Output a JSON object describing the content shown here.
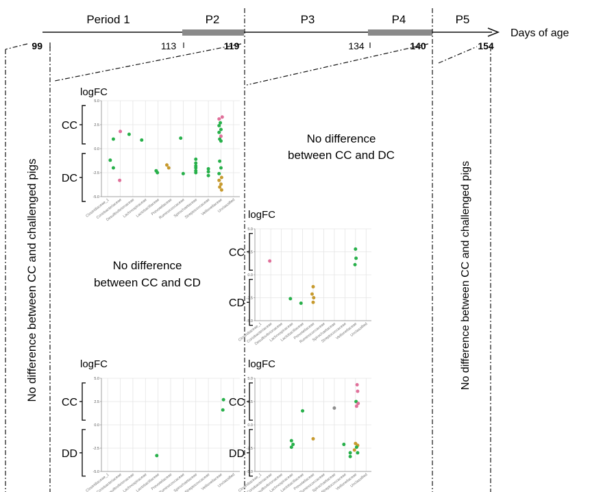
{
  "timeline": {
    "axis_label": "Days of age",
    "periods": [
      "Period 1",
      "P2",
      "P3",
      "P4",
      "P5"
    ],
    "ticks": [
      {
        "label": "99",
        "bold": true
      },
      {
        "label": "113",
        "bold": false
      },
      {
        "label": "119",
        "bold": true
      },
      {
        "label": "134",
        "bold": false
      },
      {
        "label": "140",
        "bold": true
      },
      {
        "label": "154",
        "bold": true
      }
    ]
  },
  "side_notes": {
    "left": "No difference between CC and challenged pigs",
    "right": "No difference between CC and challenged pigs"
  },
  "notes": {
    "cc_dc": [
      "No difference",
      "between CC and DC"
    ],
    "cc_cd": [
      "No difference",
      "between CC and CD"
    ]
  },
  "colors": {
    "green": "#27b04a",
    "pink": "#e0709a",
    "gold": "#c79a2e",
    "gray": "#8c8c8c",
    "period_bar": "#8a8a8a"
  },
  "chart_data": [
    {
      "id": "p2-cc-dc",
      "type": "scatter",
      "ylabel": "logFC",
      "ylim": [
        -5,
        5
      ],
      "yticks": [
        "5.0",
        "2.5",
        "0.0",
        "-2.5",
        "-5.0"
      ],
      "groups": [
        "CC",
        "DC"
      ],
      "categories": [
        "Clostridiaceae_1",
        "Coriobacteriaceae",
        "Desulfovibrionaceae",
        "Lachnospiraceae",
        "Lactobacillaceae",
        "Prevotellaceae",
        "Ruminococcaceae",
        "Spirochaetaceae",
        "Streptococcaceae",
        "Veillonellaceae",
        "Unclassified"
      ],
      "points": [
        {
          "x": 0.45,
          "y": 1.0,
          "c": "green"
        },
        {
          "x": 0.2,
          "y": -1.2,
          "c": "green"
        },
        {
          "x": 0.45,
          "y": -2.0,
          "c": "green"
        },
        {
          "x": 1.0,
          "y": 1.8,
          "c": "pink"
        },
        {
          "x": 0.95,
          "y": -3.3,
          "c": "pink"
        },
        {
          "x": 1.7,
          "y": 1.5,
          "c": "green"
        },
        {
          "x": 2.7,
          "y": 0.9,
          "c": "green"
        },
        {
          "x": 3.85,
          "y": -2.3,
          "c": "green"
        },
        {
          "x": 3.95,
          "y": -2.5,
          "c": "green"
        },
        {
          "x": 4.7,
          "y": -1.7,
          "c": "gold"
        },
        {
          "x": 4.85,
          "y": -2.0,
          "c": "gold"
        },
        {
          "x": 5.8,
          "y": 1.1,
          "c": "green"
        },
        {
          "x": 6.0,
          "y": -2.6,
          "c": "green"
        },
        {
          "x": 7.0,
          "y": -1.1,
          "c": "green"
        },
        {
          "x": 7.0,
          "y": -1.5,
          "c": "green"
        },
        {
          "x": 7.0,
          "y": -1.8,
          "c": "green"
        },
        {
          "x": 7.0,
          "y": -2.0,
          "c": "green"
        },
        {
          "x": 7.0,
          "y": -2.3,
          "c": "green"
        },
        {
          "x": 7.0,
          "y": -2.5,
          "c": "green"
        },
        {
          "x": 8.0,
          "y": -2.1,
          "c": "green"
        },
        {
          "x": 8.0,
          "y": -2.4,
          "c": "green"
        },
        {
          "x": 8.0,
          "y": -2.8,
          "c": "green"
        },
        {
          "x": 8.85,
          "y": 3.1,
          "c": "pink"
        },
        {
          "x": 8.95,
          "y": 2.7,
          "c": "green"
        },
        {
          "x": 8.85,
          "y": 2.4,
          "c": "green"
        },
        {
          "x": 9.0,
          "y": 2.0,
          "c": "green"
        },
        {
          "x": 8.85,
          "y": 1.7,
          "c": "green"
        },
        {
          "x": 9.0,
          "y": 1.3,
          "c": "pink"
        },
        {
          "x": 8.9,
          "y": 1.0,
          "c": "green"
        },
        {
          "x": 9.1,
          "y": 3.3,
          "c": "pink"
        },
        {
          "x": 9.0,
          "y": 0.8,
          "c": "green"
        },
        {
          "x": 8.9,
          "y": -1.3,
          "c": "green"
        },
        {
          "x": 9.0,
          "y": -2.0,
          "c": "green"
        },
        {
          "x": 8.85,
          "y": -2.6,
          "c": "green"
        },
        {
          "x": 9.05,
          "y": -3.0,
          "c": "gold"
        },
        {
          "x": 8.85,
          "y": -3.3,
          "c": "gold"
        },
        {
          "x": 9.0,
          "y": -3.7,
          "c": "gold"
        },
        {
          "x": 8.9,
          "y": -4.0,
          "c": "gold"
        },
        {
          "x": 9.05,
          "y": -4.3,
          "c": "gold"
        }
      ]
    },
    {
      "id": "p4-cc-cd",
      "type": "scatter",
      "ylabel": "logFC",
      "ylim": [
        -5,
        5
      ],
      "yticks": [
        "5.0",
        "2.5",
        "0.0",
        "-2.5",
        "-5.0"
      ],
      "groups": [
        "CC",
        "CD"
      ],
      "categories": [
        "Clostridiaceae_1",
        "Coriobacteriaceae",
        "Desulfovibrionaceae",
        "Lachnospiraceae",
        "Lactobacillaceae",
        "Prevotellaceae",
        "Ruminococcaceae",
        "Spirochaetaceae",
        "Streptococcaceae",
        "Veillonellaceae",
        "Unclassified"
      ],
      "points": [
        {
          "x": 0.9,
          "y": 1.5,
          "c": "pink"
        },
        {
          "x": 2.85,
          "y": -2.6,
          "c": "green"
        },
        {
          "x": 3.85,
          "y": -3.1,
          "c": "green"
        },
        {
          "x": 5.0,
          "y": -1.3,
          "c": "gold"
        },
        {
          "x": 4.9,
          "y": -2.1,
          "c": "gold"
        },
        {
          "x": 5.05,
          "y": -2.5,
          "c": "gold"
        },
        {
          "x": 5.0,
          "y": -3.0,
          "c": "gold"
        },
        {
          "x": 9.0,
          "y": 2.8,
          "c": "green"
        },
        {
          "x": 9.05,
          "y": 1.8,
          "c": "green"
        },
        {
          "x": 8.95,
          "y": 1.1,
          "c": "green"
        }
      ]
    },
    {
      "id": "p2-cc-dd",
      "type": "scatter",
      "ylabel": "logFC",
      "ylim": [
        -5,
        5
      ],
      "yticks": [
        "5.0",
        "2.5",
        "0.0",
        "-2.5",
        "-5.0"
      ],
      "groups": [
        "CC",
        "DD"
      ],
      "categories": [
        "Clostridiaceae_1",
        "Coriobacteriaceae",
        "Desulfovibrionaceae",
        "Lachnospiraceae",
        "Lactobacillaceae",
        "Prevotellaceae",
        "Ruminococcaceae",
        "Spirochaetaceae",
        "Streptococcaceae",
        "Veillonellaceae",
        "Unclassified"
      ],
      "points": [
        {
          "x": 9.2,
          "y": 2.7,
          "c": "green"
        },
        {
          "x": 9.15,
          "y": 1.6,
          "c": "green"
        },
        {
          "x": 3.9,
          "y": -3.3,
          "c": "green"
        }
      ]
    },
    {
      "id": "p4-cc-dd",
      "type": "scatter",
      "ylabel": "logFC",
      "ylim": [
        -5,
        5
      ],
      "yticks": [
        "5.0",
        "2.5",
        "0.0",
        "-2.5",
        "-5.0"
      ],
      "groups": [
        "CC",
        "DD"
      ],
      "categories": [
        "Clostridiaceae_1",
        "Coriobacteriaceae",
        "Desulfovibrionaceae",
        "Lachnospiraceae",
        "Lactobacillaceae",
        "Prevotellaceae",
        "Ruminococcaceae",
        "Spirochaetaceae",
        "Streptococcaceae",
        "Veillonellaceae",
        "Unclassified"
      ],
      "points": [
        {
          "x": 2.95,
          "y": -1.7,
          "c": "green"
        },
        {
          "x": 3.1,
          "y": -2.1,
          "c": "green"
        },
        {
          "x": 2.95,
          "y": -2.4,
          "c": "green"
        },
        {
          "x": 4.0,
          "y": 1.5,
          "c": "green"
        },
        {
          "x": 5.0,
          "y": -1.5,
          "c": "gold"
        },
        {
          "x": 7.0,
          "y": 1.8,
          "c": "gray"
        },
        {
          "x": 7.9,
          "y": -2.1,
          "c": "green"
        },
        {
          "x": 8.5,
          "y": -3.0,
          "c": "green"
        },
        {
          "x": 8.5,
          "y": -3.4,
          "c": "green"
        },
        {
          "x": 9.15,
          "y": 4.3,
          "c": "pink"
        },
        {
          "x": 9.2,
          "y": 3.6,
          "c": "pink"
        },
        {
          "x": 9.05,
          "y": 2.5,
          "c": "green"
        },
        {
          "x": 9.25,
          "y": 2.3,
          "c": "pink"
        },
        {
          "x": 9.1,
          "y": 2.0,
          "c": "pink"
        },
        {
          "x": 9.0,
          "y": -2.0,
          "c": "gold"
        },
        {
          "x": 9.2,
          "y": -2.2,
          "c": "gold"
        },
        {
          "x": 9.1,
          "y": -2.4,
          "c": "green"
        },
        {
          "x": 8.9,
          "y": -2.7,
          "c": "gold"
        },
        {
          "x": 9.2,
          "y": -3.0,
          "c": "green"
        }
      ]
    }
  ]
}
